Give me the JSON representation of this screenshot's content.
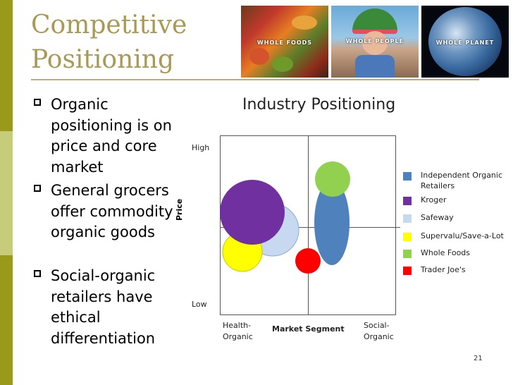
{
  "slide": {
    "title_line1": "Competitive",
    "title_line2": "Positioning",
    "page_number": "21"
  },
  "photos": [
    {
      "label": "WHOLE FOODS"
    },
    {
      "label": "WHOLE PEOPLE"
    },
    {
      "label": "WHOLE PLANET"
    }
  ],
  "bullets": [
    {
      "text": "Organic positioning is on price and core market"
    },
    {
      "text": "General grocers offer commodity organic goods"
    },
    {
      "text": "Social-organic retailers have ethical differentiation"
    }
  ],
  "diagram": {
    "title": "Industry Positioning",
    "y_high": "High",
    "y_low": "Low",
    "y_axis_label": "Price",
    "x_axis_label": "Market Segment",
    "x_left_line1": "Health-",
    "x_left_line2": "Organic",
    "x_right_line1": "Social-",
    "x_right_line2": "Organic"
  },
  "legend": [
    {
      "label_line1": "Independent Organic",
      "label_line2": "Retailers",
      "color": "#4f81bd"
    },
    {
      "label_line1": "Kroger",
      "label_line2": "",
      "color": "#7030a0"
    },
    {
      "label_line1": "Safeway",
      "label_line2": "",
      "color": "#c6d9f1"
    },
    {
      "label_line1": "Supervalu/Save-a-Lot",
      "label_line2": "",
      "color": "#ffff00"
    },
    {
      "label_line1": "Whole Foods",
      "label_line2": "",
      "color": "#92d050"
    },
    {
      "label_line1": "Trader Joe's",
      "label_line2": "",
      "color": "#ff0000"
    }
  ]
}
